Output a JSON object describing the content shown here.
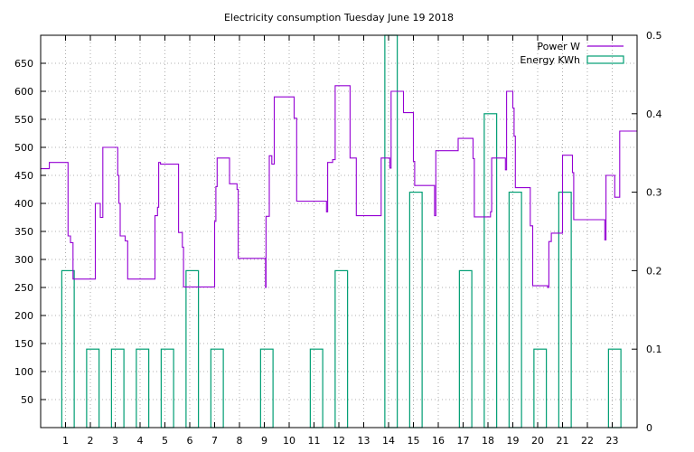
{
  "chart_data": {
    "type": "line",
    "title": "Electricity consumption Tuesday June 19 2018",
    "xlabel": "",
    "ylabel": "",
    "y2label": "",
    "xlim": [
      0,
      24
    ],
    "ylim": [
      0,
      700
    ],
    "y2lim": [
      0,
      0.5
    ],
    "x_ticks": [
      1,
      2,
      3,
      4,
      5,
      6,
      7,
      8,
      9,
      10,
      11,
      12,
      13,
      14,
      15,
      16,
      17,
      18,
      19,
      20,
      21,
      22,
      23
    ],
    "y_ticks": [
      50,
      100,
      150,
      200,
      250,
      300,
      350,
      400,
      450,
      500,
      550,
      600,
      650
    ],
    "y2_ticks": [
      "0",
      "0.1",
      "0.2",
      "0.3",
      "0.4",
      "0.5"
    ],
    "grid": true,
    "legend_position": "top-right",
    "colors": {
      "power": "#9400d3",
      "energy": "#009e73"
    },
    "series": [
      {
        "name": "Power W",
        "axis": "left",
        "style": "line",
        "points": [
          [
            0,
            462
          ],
          [
            0.35,
            462
          ],
          [
            0.35,
            473
          ],
          [
            1.1,
            473
          ],
          [
            1.1,
            342
          ],
          [
            1.2,
            342
          ],
          [
            1.2,
            330
          ],
          [
            1.3,
            330
          ],
          [
            1.3,
            265
          ],
          [
            2.2,
            265
          ],
          [
            2.2,
            400
          ],
          [
            2.4,
            400
          ],
          [
            2.4,
            375
          ],
          [
            2.5,
            375
          ],
          [
            2.5,
            500
          ],
          [
            3.1,
            500
          ],
          [
            3.1,
            450
          ],
          [
            3.15,
            450
          ],
          [
            3.15,
            400
          ],
          [
            3.2,
            400
          ],
          [
            3.2,
            342
          ],
          [
            3.4,
            342
          ],
          [
            3.4,
            333
          ],
          [
            3.5,
            333
          ],
          [
            3.5,
            265
          ],
          [
            4.6,
            265
          ],
          [
            4.6,
            378
          ],
          [
            4.7,
            378
          ],
          [
            4.7,
            393
          ],
          [
            4.75,
            393
          ],
          [
            4.75,
            473
          ],
          [
            4.82,
            473
          ],
          [
            4.82,
            470
          ],
          [
            5.55,
            470
          ],
          [
            5.55,
            348
          ],
          [
            5.7,
            348
          ],
          [
            5.7,
            322
          ],
          [
            5.75,
            322
          ],
          [
            5.75,
            251
          ],
          [
            7,
            251
          ],
          [
            7,
            368
          ],
          [
            7.05,
            368
          ],
          [
            7.05,
            430
          ],
          [
            7.1,
            430
          ],
          [
            7.1,
            481
          ],
          [
            7.6,
            481
          ],
          [
            7.6,
            435
          ],
          [
            7.9,
            435
          ],
          [
            7.9,
            425
          ],
          [
            7.95,
            425
          ],
          [
            7.95,
            302
          ],
          [
            9.05,
            302
          ],
          [
            9.05,
            250
          ],
          [
            9.07,
            250
          ],
          [
            9.07,
            377
          ],
          [
            9.2,
            377
          ],
          [
            9.2,
            485
          ],
          [
            9.3,
            485
          ],
          [
            9.3,
            470
          ],
          [
            9.4,
            470
          ],
          [
            9.4,
            590
          ],
          [
            10.2,
            590
          ],
          [
            10.2,
            552
          ],
          [
            10.3,
            552
          ],
          [
            10.3,
            404
          ],
          [
            11.5,
            404
          ],
          [
            11.5,
            385
          ],
          [
            11.55,
            385
          ],
          [
            11.55,
            473
          ],
          [
            11.75,
            473
          ],
          [
            11.75,
            478
          ],
          [
            11.85,
            478
          ],
          [
            11.85,
            610
          ],
          [
            12.45,
            610
          ],
          [
            12.45,
            481
          ],
          [
            12.7,
            481
          ],
          [
            12.7,
            378
          ],
          [
            13.7,
            378
          ],
          [
            13.7,
            481
          ],
          [
            14.05,
            481
          ],
          [
            14.05,
            463
          ],
          [
            14.1,
            463
          ],
          [
            14.1,
            600
          ],
          [
            14.6,
            600
          ],
          [
            14.6,
            562
          ],
          [
            15,
            562
          ],
          [
            15,
            475
          ],
          [
            15.05,
            475
          ],
          [
            15.05,
            432
          ],
          [
            15.85,
            432
          ],
          [
            15.85,
            378
          ],
          [
            15.9,
            378
          ],
          [
            15.9,
            494
          ],
          [
            16.8,
            494
          ],
          [
            16.8,
            516
          ],
          [
            17.4,
            516
          ],
          [
            17.4,
            480
          ],
          [
            17.45,
            480
          ],
          [
            17.45,
            376
          ],
          [
            18.1,
            376
          ],
          [
            18.1,
            385
          ],
          [
            18.15,
            385
          ],
          [
            18.15,
            481
          ],
          [
            18.7,
            481
          ],
          [
            18.7,
            460
          ],
          [
            18.75,
            460
          ],
          [
            18.75,
            600
          ],
          [
            19.0,
            600
          ],
          [
            19.0,
            570
          ],
          [
            19.05,
            570
          ],
          [
            19.05,
            520
          ],
          [
            19.1,
            520
          ],
          [
            19.1,
            428
          ],
          [
            19.7,
            428
          ],
          [
            19.7,
            360
          ],
          [
            19.8,
            360
          ],
          [
            19.8,
            253
          ],
          [
            20.4,
            253
          ],
          [
            20.4,
            250
          ],
          [
            20.45,
            250
          ],
          [
            20.45,
            332
          ],
          [
            20.55,
            332
          ],
          [
            20.55,
            347
          ],
          [
            21,
            347
          ],
          [
            21,
            486
          ],
          [
            21.4,
            486
          ],
          [
            21.4,
            455
          ],
          [
            21.45,
            455
          ],
          [
            21.45,
            371
          ],
          [
            22.7,
            371
          ],
          [
            22.7,
            335
          ],
          [
            22.75,
            335
          ],
          [
            22.75,
            450
          ],
          [
            23.1,
            450
          ],
          [
            23.1,
            411
          ],
          [
            23.3,
            411
          ],
          [
            23.3,
            529
          ],
          [
            24,
            529
          ]
        ]
      },
      {
        "name": "Energy KWh",
        "axis": "right",
        "style": "bars",
        "bars": [
          {
            "x": 1,
            "value": 0.2
          },
          {
            "x": 2,
            "value": 0.1
          },
          {
            "x": 3,
            "value": 0.1
          },
          {
            "x": 4,
            "value": 0.1
          },
          {
            "x": 5,
            "value": 0.1
          },
          {
            "x": 6,
            "value": 0.2
          },
          {
            "x": 7,
            "value": 0.1
          },
          {
            "x": 9,
            "value": 0.1
          },
          {
            "x": 11,
            "value": 0.1
          },
          {
            "x": 12,
            "value": 0.2
          },
          {
            "x": 14,
            "value": 0.5
          },
          {
            "x": 15,
            "value": 0.3
          },
          {
            "x": 17,
            "value": 0.2
          },
          {
            "x": 18,
            "value": 0.4
          },
          {
            "x": 19,
            "value": 0.3
          },
          {
            "x": 20,
            "value": 0.1
          },
          {
            "x": 21,
            "value": 0.3
          },
          {
            "x": 23,
            "value": 0.1
          }
        ]
      }
    ]
  }
}
